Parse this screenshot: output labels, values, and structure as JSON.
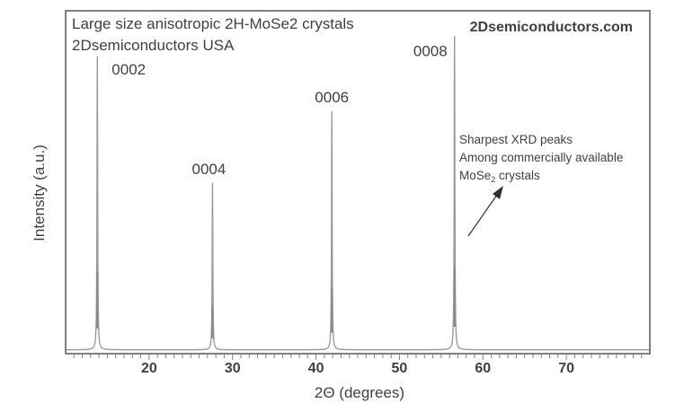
{
  "chart_data": {
    "type": "line",
    "xlabel": "2Θ (degrees)",
    "ylabel": "Intensity (a.u.)",
    "xlim": [
      10,
      80
    ],
    "ylim": [
      0,
      100
    ],
    "xticks": [
      20,
      30,
      40,
      50,
      60,
      70
    ],
    "grid": false,
    "title_lines": [
      "Large size anisotropic 2H-MoSe2 crystals",
      "2Dsemiconductors USA"
    ],
    "brand": "2Dsemiconductors.com",
    "series": [
      {
        "peaks": [
          {
            "label": "0002",
            "x": 13.8,
            "y": 86
          },
          {
            "label": "0004",
            "x": 27.6,
            "y": 49
          },
          {
            "label": "0006",
            "x": 41.9,
            "y": 70
          },
          {
            "label": "0008",
            "x": 56.6,
            "y": 92
          }
        ]
      }
    ],
    "annotation": {
      "lines": [
        "Sharpest XRD peaks",
        "Among commercially available"
      ],
      "line3_main": "MoSe",
      "line3_sub": "2",
      "line3_rest": " crystals"
    },
    "colors": {
      "frame": "#808080",
      "line": "#9a9a9a",
      "text": "#404040"
    }
  }
}
